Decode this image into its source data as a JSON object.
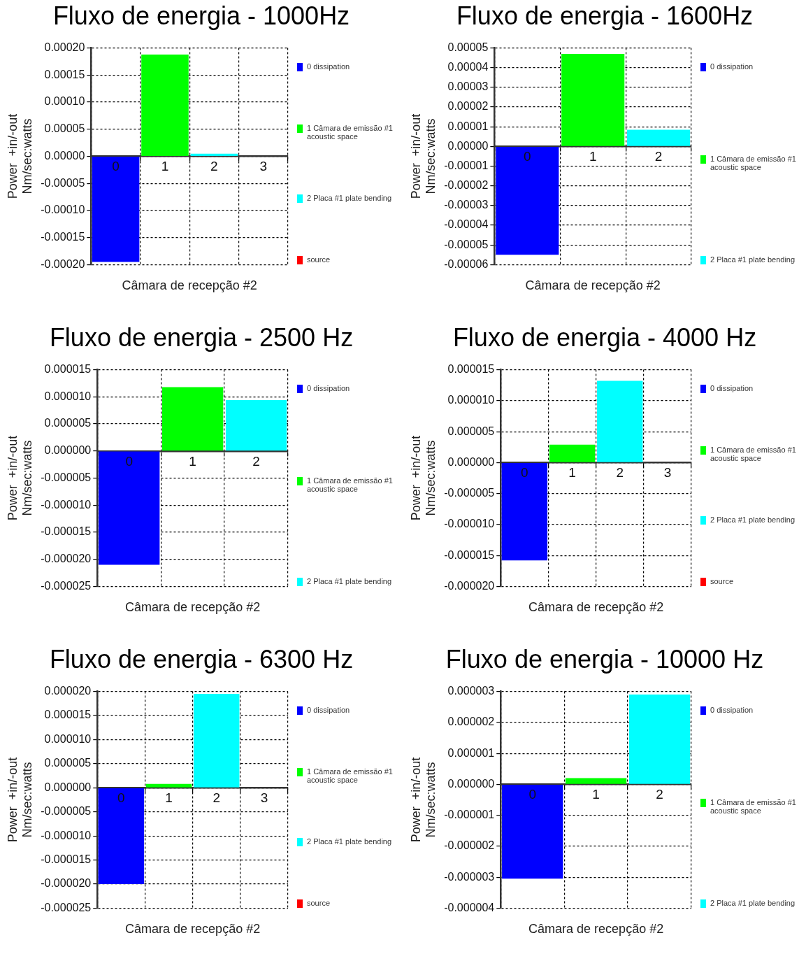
{
  "chart_data": [
    {
      "type": "bar",
      "title": "Fluxo de energia - 1000Hz",
      "xlabel": "Câmara de recepção #2",
      "ylabel": "Power  +in/-out\nNm/sec:watts",
      "categories": [
        "0",
        "1",
        "2",
        "3"
      ],
      "series": [
        {
          "name": "0 dissipation",
          "color": "#0000ff",
          "values": [
            -0.000195,
            null,
            null,
            null
          ]
        },
        {
          "name": "1 Câmara de emissão #1 acoustic space",
          "color": "#00ff00",
          "values": [
            null,
            0.000188,
            null,
            null
          ]
        },
        {
          "name": "2 Placa #1 plate bending",
          "color": "#00ffff",
          "values": [
            null,
            null,
            5e-06,
            null
          ]
        },
        {
          "name": "source",
          "color": "#ff0000",
          "values": [
            null,
            null,
            null,
            0
          ]
        }
      ],
      "ylim": [
        -0.0002,
        0.0002
      ],
      "yticks": [
        {
          "value": -0.0002,
          "label": "-0.00020"
        },
        {
          "value": -0.00015,
          "label": "-0.00015"
        },
        {
          "value": -0.0001,
          "label": "-0.00010"
        },
        {
          "value": -5e-05,
          "label": "-0.00005"
        },
        {
          "value": 0,
          "label": "0.00000"
        },
        {
          "value": 5e-05,
          "label": "0.00005"
        },
        {
          "value": 0.0001,
          "label": "0.00010"
        },
        {
          "value": 0.00015,
          "label": "0.00015"
        },
        {
          "value": 0.0002,
          "label": "0.00020"
        }
      ],
      "grid": true,
      "legend": "right"
    },
    {
      "type": "bar",
      "title": "Fluxo de energia - 1600Hz",
      "xlabel": "Câmara de recepção #2",
      "ylabel": "Power  +in/-out\nNm/sec:watts",
      "categories": [
        "0",
        "1",
        "2"
      ],
      "series": [
        {
          "name": "0 dissipation",
          "color": "#0000ff",
          "values": [
            -5.5e-05,
            null,
            null
          ]
        },
        {
          "name": "1 Câmara de emissão #1 acoustic space",
          "color": "#00ff00",
          "values": [
            null,
            4.7e-05,
            null
          ]
        },
        {
          "name": "2 Placa #1 plate bending",
          "color": "#00ffff",
          "values": [
            null,
            null,
            8.5e-06
          ]
        }
      ],
      "ylim": [
        -6e-05,
        5e-05
      ],
      "yticks": [
        {
          "value": -6e-05,
          "label": "-0.00006"
        },
        {
          "value": -5e-05,
          "label": "-0.00005"
        },
        {
          "value": -4e-05,
          "label": "-0.00004"
        },
        {
          "value": -3e-05,
          "label": "-0.00003"
        },
        {
          "value": -2e-05,
          "label": "-0.00002"
        },
        {
          "value": -1e-05,
          "label": "-0.00001"
        },
        {
          "value": 0,
          "label": "0.00000"
        },
        {
          "value": 1e-05,
          "label": "0.00001"
        },
        {
          "value": 2e-05,
          "label": "0.00002"
        },
        {
          "value": 3e-05,
          "label": "0.00003"
        },
        {
          "value": 4e-05,
          "label": "0.00004"
        },
        {
          "value": 5e-05,
          "label": "0.00005"
        }
      ],
      "grid": true,
      "legend": "right"
    },
    {
      "type": "bar",
      "title": "Fluxo de energia - 2500 Hz",
      "xlabel": "Câmara de recepção #2",
      "ylabel": "Power  +in/-out\nNm/sec:watts",
      "categories": [
        "0",
        "1",
        "2"
      ],
      "series": [
        {
          "name": "0 dissipation",
          "color": "#0000ff",
          "values": [
            -2.1e-05,
            null,
            null
          ]
        },
        {
          "name": "1 Câmara de emissão #1 acoustic space",
          "color": "#00ff00",
          "values": [
            null,
            1.18e-05,
            null
          ]
        },
        {
          "name": "2 Placa #1 plate bending",
          "color": "#00ffff",
          "values": [
            null,
            null,
            9.4e-06
          ]
        }
      ],
      "ylim": [
        -2.5e-05,
        1.5e-05
      ],
      "yticks": [
        {
          "value": -2.5e-05,
          "label": "-0.000025"
        },
        {
          "value": -2e-05,
          "label": "-0.000020"
        },
        {
          "value": -1.5e-05,
          "label": "-0.000015"
        },
        {
          "value": -1e-05,
          "label": "-0.000010"
        },
        {
          "value": -5e-06,
          "label": "-0.000005"
        },
        {
          "value": 0,
          "label": "0.000000"
        },
        {
          "value": 5e-06,
          "label": "0.000005"
        },
        {
          "value": 1e-05,
          "label": "0.000010"
        },
        {
          "value": 1.5e-05,
          "label": "0.000015"
        }
      ],
      "grid": true,
      "legend": "right"
    },
    {
      "type": "bar",
      "title": "Fluxo de energia - 4000 Hz",
      "xlabel": "Câmara de recepção #2",
      "ylabel": "Power  +in/-out\nNm/sec:watts",
      "categories": [
        "0",
        "1",
        "2",
        "3"
      ],
      "series": [
        {
          "name": "0 dissipation",
          "color": "#0000ff",
          "values": [
            -1.58e-05,
            null,
            null,
            null
          ]
        },
        {
          "name": "1 Câmara de emissão #1 acoustic space",
          "color": "#00ff00",
          "values": [
            null,
            2.9e-06,
            null,
            null
          ]
        },
        {
          "name": "2 Placa #1 plate bending",
          "color": "#00ffff",
          "values": [
            null,
            null,
            1.32e-05,
            null
          ]
        },
        {
          "name": "source",
          "color": "#ff0000",
          "values": [
            null,
            null,
            null,
            0
          ]
        }
      ],
      "ylim": [
        -2e-05,
        1.5e-05
      ],
      "yticks": [
        {
          "value": -2e-05,
          "label": "-0.000020"
        },
        {
          "value": -1.5e-05,
          "label": "-0.000015"
        },
        {
          "value": -1e-05,
          "label": "-0.000010"
        },
        {
          "value": -5e-06,
          "label": "-0.000005"
        },
        {
          "value": 0,
          "label": "0.000000"
        },
        {
          "value": 5e-06,
          "label": "0.000005"
        },
        {
          "value": 1e-05,
          "label": "0.000010"
        },
        {
          "value": 1.5e-05,
          "label": "0.000015"
        }
      ],
      "grid": true,
      "legend": "right"
    },
    {
      "type": "bar",
      "title": "Fluxo de energia - 6300 Hz",
      "xlabel": "Câmara de recepção #2",
      "ylabel": "Power  +in/-out\nNm/sec:watts",
      "categories": [
        "0",
        "1",
        "2",
        "3"
      ],
      "series": [
        {
          "name": "0 dissipation",
          "color": "#0000ff",
          "values": [
            -2e-05,
            null,
            null,
            null
          ]
        },
        {
          "name": "1 Câmara de emissão #1 acoustic space",
          "color": "#00ff00",
          "values": [
            null,
            8e-07,
            null,
            null
          ]
        },
        {
          "name": "2 Placa #1 plate bending",
          "color": "#00ffff",
          "values": [
            null,
            null,
            1.95e-05,
            null
          ]
        },
        {
          "name": "source",
          "color": "#ff0000",
          "values": [
            null,
            null,
            null,
            0
          ]
        }
      ],
      "ylim": [
        -2.5e-05,
        2e-05
      ],
      "yticks": [
        {
          "value": -2.5e-05,
          "label": "-0.000025"
        },
        {
          "value": -2e-05,
          "label": "-0.000020"
        },
        {
          "value": -1.5e-05,
          "label": "-0.000015"
        },
        {
          "value": -1e-05,
          "label": "-0.000010"
        },
        {
          "value": -5e-06,
          "label": "-0.000005"
        },
        {
          "value": 0,
          "label": "0.000000"
        },
        {
          "value": 5e-06,
          "label": "0.000005"
        },
        {
          "value": 1e-05,
          "label": "0.000010"
        },
        {
          "value": 1.5e-05,
          "label": "0.000015"
        },
        {
          "value": 2e-05,
          "label": "0.000020"
        }
      ],
      "grid": true,
      "legend": "right"
    },
    {
      "type": "bar",
      "title": "Fluxo de energia - 10000 Hz",
      "xlabel": "Câmara de recepção #2",
      "ylabel": "Power  +in/-out\nNm/sec:watts",
      "categories": [
        "0",
        "1",
        "2"
      ],
      "series": [
        {
          "name": "0 dissipation",
          "color": "#0000ff",
          "values": [
            -3.05e-06,
            null,
            null
          ]
        },
        {
          "name": "1 Câmara de emissão #1 acoustic space",
          "color": "#00ff00",
          "values": [
            null,
            2e-07,
            null
          ]
        },
        {
          "name": "2 Placa #1 plate bending",
          "color": "#00ffff",
          "values": [
            null,
            null,
            2.9e-06
          ]
        }
      ],
      "ylim": [
        -4e-06,
        3e-06
      ],
      "yticks": [
        {
          "value": -4e-06,
          "label": "-0.000004"
        },
        {
          "value": -3e-06,
          "label": "-0.000003"
        },
        {
          "value": -2e-06,
          "label": "-0.000002"
        },
        {
          "value": -1e-06,
          "label": "-0.000001"
        },
        {
          "value": 0,
          "label": "0.000000"
        },
        {
          "value": 1e-06,
          "label": "0.000001"
        },
        {
          "value": 2e-06,
          "label": "0.000002"
        },
        {
          "value": 3e-06,
          "label": "0.000003"
        }
      ],
      "grid": true,
      "legend": "right"
    }
  ]
}
